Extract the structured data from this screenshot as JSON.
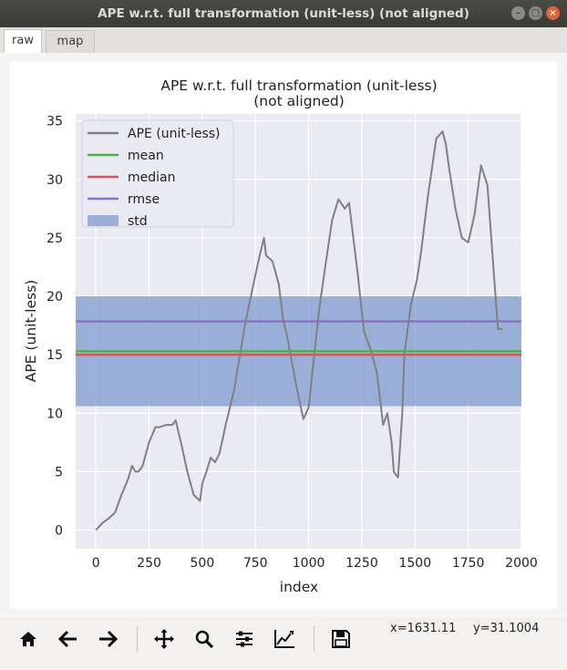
{
  "window": {
    "title": "APE w.r.t. full transformation (unit-less) (not aligned)"
  },
  "tabs": [
    {
      "label": "raw",
      "active": true
    },
    {
      "label": "map",
      "active": false
    }
  ],
  "toolbar": {
    "buttons": [
      "home-icon",
      "back-icon",
      "forward-icon",
      "pan-icon",
      "zoom-icon",
      "configure-subplots-icon",
      "edit-axis-icon",
      "save-icon"
    ],
    "coord_x": "x=1631.11",
    "coord_y": "y=31.1004"
  },
  "chart_data": {
    "type": "line",
    "title": "APE w.r.t. full transformation (unit-less)",
    "subtitle": "(not aligned)",
    "xlabel": "index",
    "ylabel": "APE (unit-less)",
    "xlim": [
      -95,
      2000
    ],
    "ylim": [
      -1.6,
      35.6
    ],
    "xticks": [
      0,
      250,
      500,
      750,
      1000,
      1250,
      1500,
      1750,
      2000
    ],
    "yticks": [
      0,
      5,
      10,
      15,
      20,
      25,
      30,
      35
    ],
    "grid": true,
    "legend_position": "upper-left",
    "legend": [
      "APE (unit-less)",
      "mean",
      "median",
      "rmse",
      "std"
    ],
    "colors": {
      "ape": "#808080",
      "mean": "#4caf50",
      "median": "#d9534f",
      "rmse": "#8a6fc4",
      "std": "#6f8fc7",
      "background": "#eaeaf2"
    },
    "mean": 15.3,
    "median": 15.0,
    "rmse": 17.85,
    "std_range": [
      10.6,
      20.0
    ],
    "series": [
      {
        "name": "APE (unit-less)",
        "x": [
          0,
          30,
          60,
          90,
          120,
          150,
          170,
          185,
          200,
          220,
          250,
          280,
          300,
          330,
          360,
          375,
          400,
          430,
          460,
          490,
          500,
          520,
          540,
          560,
          580,
          610,
          650,
          700,
          740,
          770,
          790,
          800,
          830,
          860,
          880,
          900,
          940,
          975,
          1000,
          1020,
          1050,
          1080,
          1110,
          1140,
          1170,
          1190,
          1210,
          1230,
          1260,
          1290,
          1320,
          1350,
          1370,
          1390,
          1400,
          1420,
          1440,
          1450,
          1480,
          1510,
          1530,
          1560,
          1600,
          1630,
          1645,
          1660,
          1690,
          1720,
          1750,
          1780,
          1810,
          1840,
          1870,
          1890,
          1910
        ],
        "y": [
          0,
          0.6,
          1,
          1.5,
          3,
          4.3,
          5.5,
          5,
          5,
          5.5,
          7.5,
          8.8,
          8.8,
          9,
          9,
          9.4,
          7.5,
          5,
          3,
          2.5,
          4,
          5,
          6.2,
          5.8,
          6.5,
          9,
          12,
          17.5,
          21,
          23.5,
          25,
          23.5,
          23,
          21,
          18,
          16.5,
          12.5,
          9.5,
          10.5,
          14,
          19,
          22.8,
          26.5,
          28.3,
          27.5,
          28,
          25,
          22,
          17,
          15.5,
          13.5,
          9,
          10,
          7.5,
          5,
          4.5,
          10,
          15,
          19.2,
          21.5,
          24,
          28.5,
          33.5,
          34.1,
          33,
          31,
          27.5,
          25,
          24.6,
          27,
          31.2,
          29.5,
          22,
          17.2,
          17.2
        ]
      },
      {
        "name": "mean",
        "values": [
          15.3,
          15.3
        ]
      },
      {
        "name": "median",
        "values": [
          15.0,
          15.0
        ]
      },
      {
        "name": "rmse",
        "values": [
          17.85,
          17.85
        ]
      }
    ]
  }
}
